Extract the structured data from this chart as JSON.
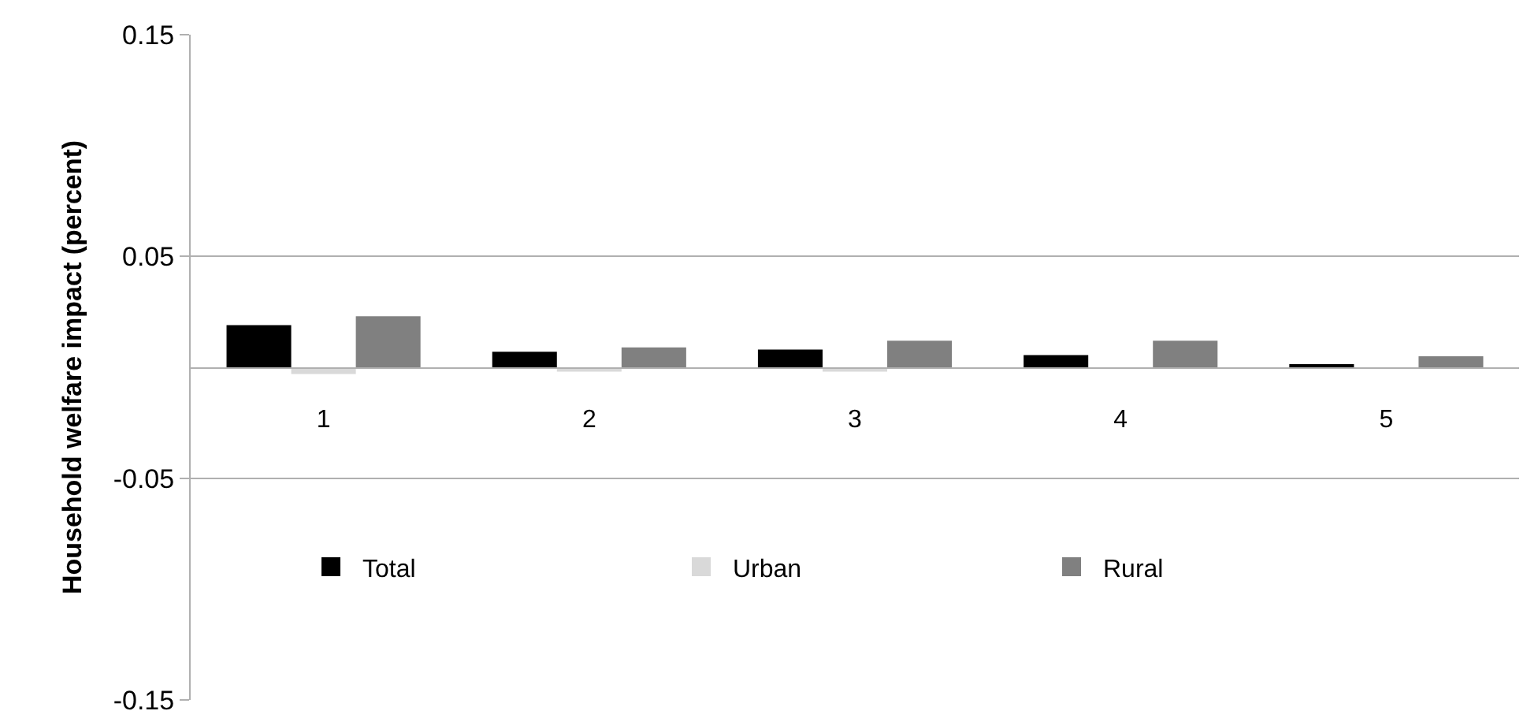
{
  "chart_data": {
    "type": "bar",
    "ylabel": "Household welfare impact (percent)",
    "categories": [
      "1",
      "2",
      "3",
      "4",
      "5"
    ],
    "series": [
      {
        "name": "Total",
        "color": "#000000",
        "values": [
          0.019,
          0.007,
          0.008,
          0.0055,
          0.001
        ]
      },
      {
        "name": "Urban",
        "color": "#d9d9d9",
        "values": [
          -0.003,
          -0.002,
          -0.002,
          0,
          0
        ]
      },
      {
        "name": "Rural",
        "color": "#808080",
        "values": [
          0.023,
          0.009,
          0.012,
          0.012,
          0.005
        ]
      }
    ],
    "ylim": [
      -0.15,
      0.15
    ],
    "yticks": [
      -0.15,
      -0.05,
      0.05,
      0.15
    ],
    "grid": "y",
    "legend": "bottom"
  }
}
